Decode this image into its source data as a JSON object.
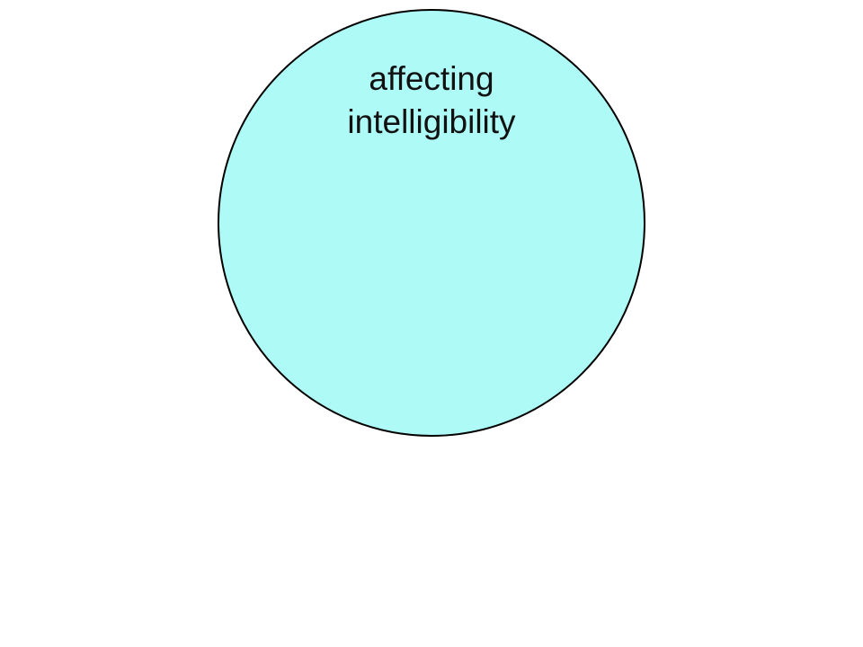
{
  "diagram": {
    "circle": {
      "fill_color": "#aefaf6",
      "stroke_color": "#000000",
      "label_lines": [
        "affecting",
        "intelligibility"
      ]
    }
  }
}
